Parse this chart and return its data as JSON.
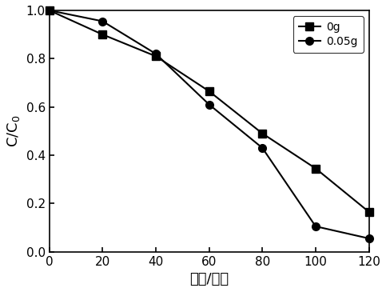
{
  "x": [
    0,
    20,
    40,
    60,
    80,
    100,
    120
  ],
  "series1_y": [
    1.0,
    0.9,
    0.81,
    0.665,
    0.49,
    0.345,
    0.165
  ],
  "series2_y": [
    1.0,
    0.955,
    0.82,
    0.61,
    0.43,
    0.105,
    0.055
  ],
  "series1_label": "0g",
  "series2_label": "0.05g",
  "series1_color": "#000000",
  "series2_color": "#000000",
  "series1_marker": "s",
  "series2_marker": "o",
  "xlabel": "时间/分钟",
  "ylabel": "C/C$_0$",
  "xlim": [
    0,
    120
  ],
  "ylim": [
    0.0,
    1.0
  ],
  "xticks": [
    0,
    20,
    40,
    60,
    80,
    100,
    120
  ],
  "yticks": [
    0.0,
    0.2,
    0.4,
    0.6,
    0.8,
    1.0
  ],
  "legend_loc": "upper right",
  "linewidth": 1.5,
  "markersize": 7,
  "label_fontsize": 13,
  "tick_fontsize": 11,
  "legend_fontsize": 10
}
